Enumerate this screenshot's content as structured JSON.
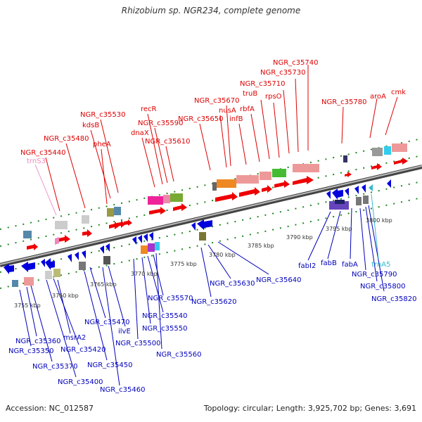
{
  "title": "Rhizobium sp. NGR234, complete genome",
  "footer": {
    "accession": "Accession: NC_012587",
    "summary": "Topology: circular; Length: 3,925,702 bp; Genes: 3,691"
  },
  "colors": {
    "forward": "#dd0000",
    "reverse": "#0000bb",
    "trna_fwd": "#ee88bb",
    "trna_rev": "#33bbcc",
    "backbone": "#888888",
    "tick": "#228822"
  },
  "position_labels": [
    "3755 kbp",
    "3760 kbp",
    "3765 kbp",
    "3770 kbp",
    "3775 kbp",
    "3780 kbp",
    "3785 kbp",
    "3790 kbp",
    "3795 kbp",
    "3800 kbp"
  ],
  "forward_labels": [
    {
      "id": "NGR_c35740",
      "text": "NGR_c35740"
    },
    {
      "id": "NGR_c35730",
      "text": "NGR_c35730"
    },
    {
      "id": "NGR_c35710",
      "text": "NGR_c35710"
    },
    {
      "id": "truB",
      "text": "truB"
    },
    {
      "id": "rpsO",
      "text": "rpsO"
    },
    {
      "id": "NGR_c35670",
      "text": "NGR_c35670"
    },
    {
      "id": "rbfA",
      "text": "rbfA"
    },
    {
      "id": "nusA",
      "text": "nusA"
    },
    {
      "id": "NGR_c35650",
      "text": "NGR_c35650"
    },
    {
      "id": "infB",
      "text": "infB"
    },
    {
      "id": "NGR_c35780",
      "text": "NGR_c35780"
    },
    {
      "id": "aroA",
      "text": "aroA"
    },
    {
      "id": "cmk",
      "text": "cmk"
    },
    {
      "id": "recR",
      "text": "recR"
    },
    {
      "id": "NGR_c35530",
      "text": "NGR_c35530"
    },
    {
      "id": "NGR_c35590",
      "text": "NGR_c35590"
    },
    {
      "id": "kdsB",
      "text": "kdsB"
    },
    {
      "id": "dnaX",
      "text": "dnaX"
    },
    {
      "id": "NGR_c35610",
      "text": "NGR_c35610"
    },
    {
      "id": "NGR_c35480",
      "text": "NGR_c35480"
    },
    {
      "id": "pheA",
      "text": "pheA"
    },
    {
      "id": "NGR_c35440",
      "text": "NGR_c35440"
    },
    {
      "id": "trnS3",
      "text": "trnS3"
    }
  ],
  "reverse_labels": [
    {
      "id": "fabI2",
      "text": "fabI2"
    },
    {
      "id": "fabB",
      "text": "fabB"
    },
    {
      "id": "fabA",
      "text": "fabA"
    },
    {
      "id": "trnA5",
      "text": "trnA5"
    },
    {
      "id": "NGR_c35790",
      "text": "NGR_c35790"
    },
    {
      "id": "NGR_c35800",
      "text": "NGR_c35800"
    },
    {
      "id": "NGR_c35820",
      "text": "NGR_c35820"
    },
    {
      "id": "NGR_c35640",
      "text": "NGR_c35640"
    },
    {
      "id": "NGR_c35630",
      "text": "NGR_c35630"
    },
    {
      "id": "NGR_c35620",
      "text": "NGR_c35620"
    },
    {
      "id": "NGR_c35570",
      "text": "NGR_c35570"
    },
    {
      "id": "NGR_c35540",
      "text": "NGR_c35540"
    },
    {
      "id": "NGR_c35550",
      "text": "NGR_c35550"
    },
    {
      "id": "NGR_c35500",
      "text": "NGR_c35500"
    },
    {
      "id": "NGR_c35560",
      "text": "NGR_c35560"
    },
    {
      "id": "NGR_c35470",
      "text": "NGR_c35470"
    },
    {
      "id": "ilvE",
      "text": "ilvE"
    },
    {
      "id": "NGR_c35450",
      "text": "NGR_c35450"
    },
    {
      "id": "NGR_c35460",
      "text": "NGR_c35460"
    },
    {
      "id": "msrA2",
      "text": "msrA2"
    },
    {
      "id": "NGR_c35420",
      "text": "NGR_c35420"
    },
    {
      "id": "NGR_c35400",
      "text": "NGR_c35400"
    },
    {
      "id": "NGR_c35360",
      "text": "NGR_c35360"
    },
    {
      "id": "NGR_c35350",
      "text": "NGR_c35350"
    },
    {
      "id": "NGR_c35370",
      "text": "NGR_c35370"
    }
  ]
}
